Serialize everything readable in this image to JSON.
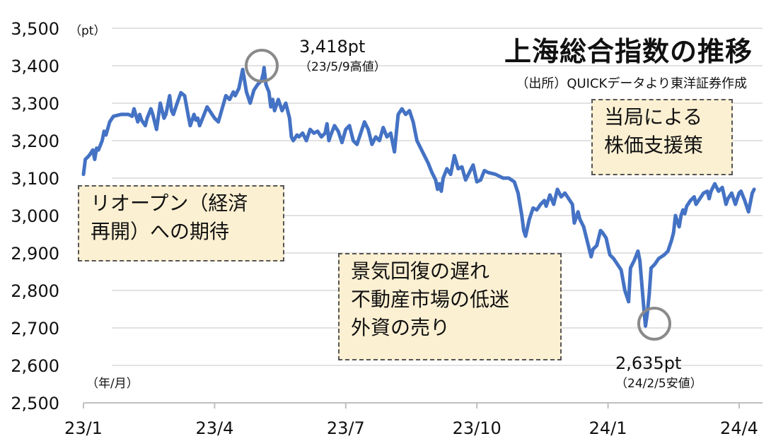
{
  "header": {
    "title": "上海総合指数の推移",
    "source": "（出所）QUICKデータより東洋証券作成"
  },
  "notes": {
    "reopen": [
      "リオープン（経済",
      "再開）への期待"
    ],
    "slowdown": [
      "景気回復の遅れ",
      "不動産市場の低迷",
      "外資の売り"
    ],
    "support": [
      "当局による",
      "株価支援策"
    ]
  },
  "annotations": {
    "high": {
      "value": "3,418pt",
      "date": "（23/5/9高値）"
    },
    "low": {
      "value": "2,635pt",
      "date": "（24/2/5安値）"
    }
  },
  "chart_data": {
    "type": "line",
    "title": "上海総合指数の推移",
    "ylabel": "（pt）",
    "xlabel": "（年/月）",
    "ylim": [
      2500,
      3500
    ],
    "yticks": [
      2500,
      2600,
      2700,
      2800,
      2900,
      3000,
      3100,
      3200,
      3300,
      3400,
      3500
    ],
    "ytick_labels": [
      "2,500",
      "2,600",
      "2,700",
      "2,800",
      "2,900",
      "3,000",
      "3,100",
      "3,200",
      "3,300",
      "3,400",
      "3,500"
    ],
    "xticks": [
      "23/1",
      "23/4",
      "23/7",
      "23/10",
      "24/1",
      "24/4"
    ],
    "xrange_months": [
      0,
      15.4
    ],
    "grid": true,
    "line_color": "#4472c4",
    "series": [
      {
        "values": [
          [
            0.0,
            3110
          ],
          [
            0.05,
            3150
          ],
          [
            0.15,
            3160
          ],
          [
            0.25,
            3175
          ],
          [
            0.3,
            3150
          ],
          [
            0.35,
            3180
          ],
          [
            0.4,
            3175
          ],
          [
            0.5,
            3200
          ],
          [
            0.55,
            3225
          ],
          [
            0.6,
            3215
          ],
          [
            0.7,
            3250
          ],
          [
            0.8,
            3265
          ],
          [
            1.0,
            3270
          ],
          [
            1.2,
            3270
          ],
          [
            1.3,
            3265
          ],
          [
            1.35,
            3285
          ],
          [
            1.45,
            3250
          ],
          [
            1.5,
            3270
          ],
          [
            1.55,
            3255
          ],
          [
            1.65,
            3240
          ],
          [
            1.7,
            3260
          ],
          [
            1.8,
            3285
          ],
          [
            1.85,
            3270
          ],
          [
            1.95,
            3230
          ],
          [
            2.05,
            3300
          ],
          [
            2.15,
            3260
          ],
          [
            2.2,
            3270
          ],
          [
            2.3,
            3320
          ],
          [
            2.35,
            3280
          ],
          [
            2.4,
            3270
          ],
          [
            2.5,
            3300
          ],
          [
            2.6,
            3328
          ],
          [
            2.7,
            3320
          ],
          [
            2.8,
            3265
          ],
          [
            2.85,
            3240
          ],
          [
            2.95,
            3270
          ],
          [
            3.0,
            3255
          ],
          [
            3.05,
            3260
          ],
          [
            3.1,
            3240
          ],
          [
            3.2,
            3265
          ],
          [
            3.3,
            3290
          ],
          [
            3.4,
            3275
          ],
          [
            3.5,
            3260
          ],
          [
            3.6,
            3250
          ],
          [
            3.7,
            3285
          ],
          [
            3.8,
            3320
          ],
          [
            3.9,
            3310
          ],
          [
            4.0,
            3330
          ],
          [
            4.05,
            3320
          ],
          [
            4.15,
            3340
          ],
          [
            4.25,
            3390
          ],
          [
            4.35,
            3330
          ],
          [
            4.45,
            3300
          ],
          [
            4.55,
            3335
          ],
          [
            4.65,
            3350
          ],
          [
            4.75,
            3360
          ],
          [
            4.8,
            3380
          ],
          [
            4.82,
            3395
          ],
          [
            4.87,
            3350
          ],
          [
            4.95,
            3330
          ],
          [
            5.0,
            3290
          ],
          [
            5.05,
            3310
          ],
          [
            5.1,
            3280
          ],
          [
            5.2,
            3310
          ],
          [
            5.3,
            3280
          ],
          [
            5.4,
            3300
          ],
          [
            5.5,
            3260
          ],
          [
            5.55,
            3210
          ],
          [
            5.6,
            3200
          ],
          [
            5.7,
            3215
          ],
          [
            5.75,
            3210
          ],
          [
            5.85,
            3220
          ],
          [
            5.95,
            3200
          ],
          [
            6.05,
            3230
          ],
          [
            6.15,
            3220
          ],
          [
            6.25,
            3225
          ],
          [
            6.35,
            3210
          ],
          [
            6.45,
            3220
          ],
          [
            6.5,
            3245
          ],
          [
            6.55,
            3200
          ],
          [
            6.6,
            3215
          ],
          [
            6.7,
            3240
          ],
          [
            6.8,
            3225
          ],
          [
            6.9,
            3195
          ],
          [
            7.0,
            3230
          ],
          [
            7.1,
            3240
          ],
          [
            7.2,
            3200
          ],
          [
            7.3,
            3190
          ],
          [
            7.4,
            3220
          ],
          [
            7.5,
            3250
          ],
          [
            7.6,
            3230
          ],
          [
            7.7,
            3190
          ],
          [
            7.8,
            3210
          ],
          [
            7.9,
            3200
          ],
          [
            8.0,
            3235
          ],
          [
            8.1,
            3210
          ],
          [
            8.2,
            3220
          ],
          [
            8.3,
            3170
          ],
          [
            8.4,
            3270
          ],
          [
            8.5,
            3285
          ],
          [
            8.6,
            3270
          ],
          [
            8.7,
            3280
          ],
          [
            8.8,
            3250
          ],
          [
            8.9,
            3200
          ],
          [
            9.0,
            3180
          ],
          [
            9.1,
            3160
          ],
          [
            9.2,
            3140
          ],
          [
            9.3,
            3115
          ],
          [
            9.4,
            3095
          ],
          [
            9.45,
            3070
          ],
          [
            9.5,
            3085
          ],
          [
            9.55,
            3065
          ],
          [
            9.6,
            3100
          ],
          [
            9.7,
            3125
          ],
          [
            9.8,
            3110
          ],
          [
            9.9,
            3160
          ],
          [
            10.0,
            3125
          ],
          [
            10.1,
            3130
          ],
          [
            10.2,
            3095
          ],
          [
            10.3,
            3115
          ],
          [
            10.4,
            3135
          ],
          [
            10.5,
            3090
          ],
          [
            10.6,
            3095
          ],
          [
            10.7,
            3120
          ],
          [
            10.8,
            3115
          ],
          [
            11.0,
            3110
          ],
          [
            11.2,
            3100
          ],
          [
            11.35,
            3100
          ],
          [
            11.5,
            3090
          ],
          [
            11.6,
            3060
          ],
          [
            11.7,
            3000
          ],
          [
            11.75,
            2960
          ],
          [
            11.8,
            2945
          ],
          [
            11.9,
            2990
          ],
          [
            12.0,
            3020
          ],
          [
            12.1,
            3015
          ],
          [
            12.2,
            3030
          ],
          [
            12.3,
            3040
          ],
          [
            12.35,
            3025
          ],
          [
            12.45,
            3055
          ],
          [
            12.55,
            3030
          ],
          [
            12.65,
            3070
          ],
          [
            12.75,
            3050
          ],
          [
            12.85,
            3060
          ],
          [
            12.95,
            3045
          ],
          [
            13.05,
            3030
          ],
          [
            13.1,
            2980
          ],
          [
            13.2,
            3010
          ],
          [
            13.25,
            2990
          ],
          [
            13.35,
            2970
          ],
          [
            13.45,
            2930
          ],
          [
            13.55,
            2890
          ],
          [
            13.6,
            2910
          ],
          [
            13.7,
            2920
          ],
          [
            13.8,
            2960
          ],
          [
            13.85,
            2955
          ],
          [
            13.95,
            2940
          ],
          [
            14.05,
            2895
          ],
          [
            14.15,
            2885
          ],
          [
            14.25,
            2870
          ],
          [
            14.35,
            2855
          ],
          [
            14.45,
            2800
          ],
          [
            14.55,
            2770
          ],
          [
            14.6,
            2860
          ],
          [
            14.65,
            2870
          ],
          [
            14.7,
            2880
          ],
          [
            14.8,
            2905
          ],
          [
            14.85,
            2880
          ],
          [
            14.9,
            2820
          ],
          [
            14.95,
            2760
          ],
          [
            15.0,
            2705
          ],
          [
            15.05,
            2740
          ],
          [
            15.1,
            2790
          ],
          [
            15.15,
            2860
          ],
          [
            15.25,
            2870
          ],
          [
            15.35,
            2885
          ],
          [
            15.5,
            2895
          ],
          [
            15.6,
            2905
          ],
          [
            15.7,
            2935
          ],
          [
            15.75,
            2955
          ],
          [
            15.8,
            3000
          ],
          [
            15.85,
            2985
          ],
          [
            15.9,
            2970
          ],
          [
            15.95,
            3000
          ],
          [
            16.0,
            3015
          ],
          [
            16.05,
            3005
          ],
          [
            16.1,
            3025
          ],
          [
            16.2,
            3040
          ],
          [
            16.3,
            3050
          ],
          [
            16.35,
            3030
          ],
          [
            16.45,
            3045
          ],
          [
            16.55,
            3060
          ],
          [
            16.65,
            3065
          ],
          [
            16.7,
            3045
          ],
          [
            16.75,
            3065
          ],
          [
            16.85,
            3085
          ],
          [
            16.95,
            3065
          ],
          [
            17.05,
            3075
          ],
          [
            17.15,
            3030
          ],
          [
            17.2,
            3045
          ],
          [
            17.3,
            3060
          ],
          [
            17.4,
            3030
          ],
          [
            17.5,
            3060
          ],
          [
            17.55,
            3065
          ],
          [
            17.65,
            3040
          ],
          [
            17.75,
            3010
          ],
          [
            17.85,
            3060
          ],
          [
            17.9,
            3070
          ]
        ]
      }
    ]
  }
}
